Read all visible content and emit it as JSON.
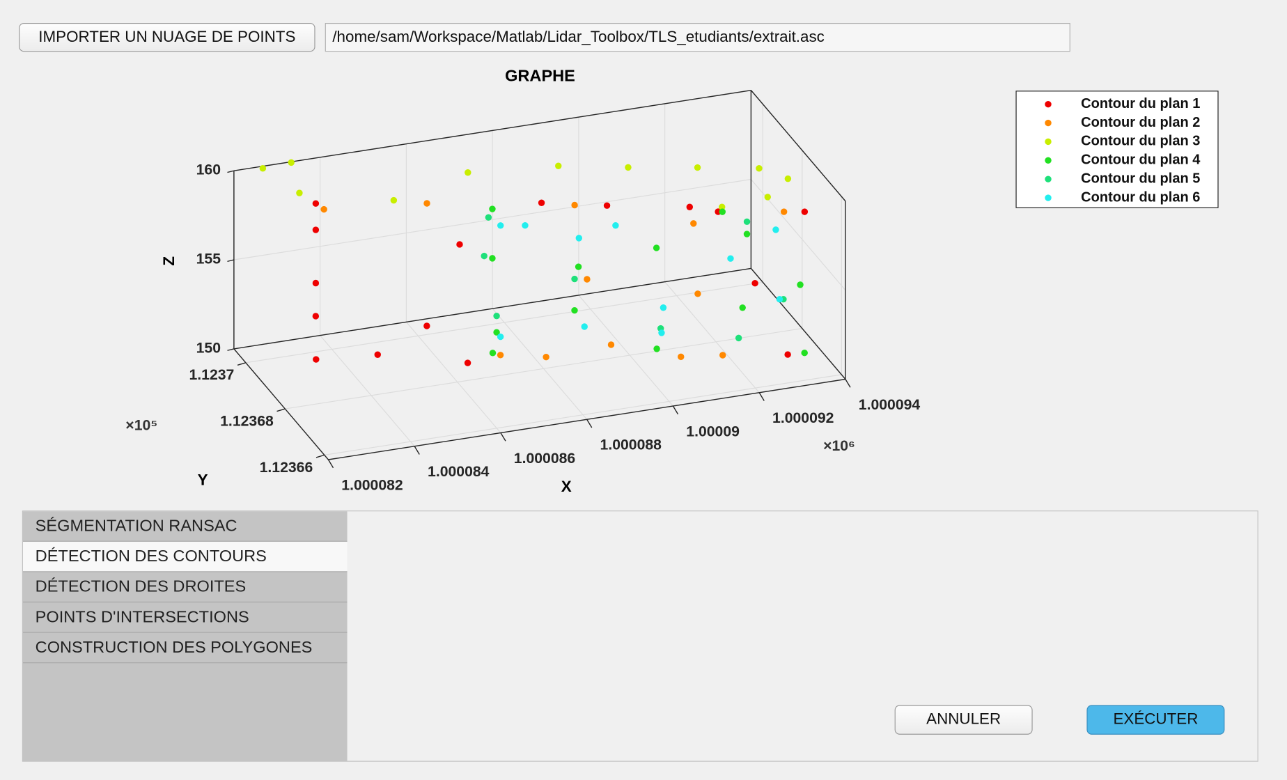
{
  "ui": {
    "import_button": "IMPORTER UN NUAGE DE POINTS",
    "file_path": "/home/sam/Workspace/Matlab/Lidar_Toolbox/TLS_etudiants/extrait.asc",
    "tabs": [
      "SÉGMENTATION RANSAC",
      "DÉTECTION DES CONTOURS",
      "DÉTECTION DES DROITES",
      "POINTS D'INTERSECTIONS",
      "CONSTRUCTION DES POLYGONES"
    ],
    "selected_tab": 1,
    "cancel_button": "ANNULER",
    "execute_button": "EXÉCUTER"
  },
  "chart_data": {
    "type": "scatter3d",
    "title": "GRAPHE",
    "xlabel": "X",
    "ylabel": "Y",
    "zlabel": "Z",
    "x_exponent_label": "×10⁶",
    "y_exponent_label": "×10⁵",
    "grid": true,
    "xlim": [
      1000082,
      1000094
    ],
    "ylim": [
      112365.8,
      112370.6
    ],
    "zlim": [
      150,
      160
    ],
    "xticks": [
      {
        "value": 1000082,
        "label": "1.000082"
      },
      {
        "value": 1000084,
        "label": "1.000084"
      },
      {
        "value": 1000086,
        "label": "1.000086"
      },
      {
        "value": 1000088,
        "label": "1.000088"
      },
      {
        "value": 1000090,
        "label": "1.00009"
      },
      {
        "value": 1000092,
        "label": "1.000092"
      },
      {
        "value": 1000094,
        "label": "1.000094"
      }
    ],
    "yticks": [
      {
        "value": 112366,
        "label": "1.12366"
      },
      {
        "value": 112368,
        "label": "1.12368"
      },
      {
        "value": 112370,
        "label": "1.1237"
      }
    ],
    "zticks": [
      150,
      155,
      160
    ],
    "series": [
      {
        "name": "Contour du plan 1",
        "color": "#ee0000",
        "x": [
          1000083.68,
          1000083.68,
          1000083.68,
          1000083.46,
          1000082.92,
          1000084.24,
          1000086.33,
          1000085.6,
          1000088.7,
          1000091.7,
          1000093.82,
          1000093.1,
          1000092.34,
          1000086.8,
          1000092.25,
          1000090.0
        ],
        "y": [
          112370.12,
          112370.12,
          112370.12,
          112369.64,
          112368.44,
          112368.2,
          112368.2,
          112368.68,
          112369.64,
          112368.68,
          112367.48,
          112366.76,
          112366.76,
          112369.64,
          112368.44,
          112369.16
        ],
        "z": [
          158.15,
          156.67,
          153.68,
          152.53,
          151.86,
          151.94,
          150.69,
          152.42,
          156.92,
          156.8,
          157.29,
          150.48,
          154.77,
          155.3,
          156.64,
          156.9
        ]
      },
      {
        "name": "Contour du plan 2",
        "color": "#ff8800",
        "x": [
          1000083.87,
          1000086.15,
          1000089.14,
          1000091.46,
          1000088.88,
          1000091.34,
          1000086.98,
          1000087.93,
          1000089.22,
          1000090.84,
          1000091.7,
          1000093.45
        ],
        "y": [
          112370.12,
          112369.88,
          112368.92,
          112367.96,
          112367.72,
          112367.48,
          112367.96,
          112367.72,
          112367.24,
          112367.24,
          112367.0,
          112367.72
        ],
        "z": [
          157.75,
          157.54,
          157.56,
          156.9,
          155.05,
          153.62,
          151.2,
          151.04,
          151.87,
          150.58,
          150.66,
          157.12
        ]
      },
      {
        "name": "Contour du plan 3",
        "color": "#c8ee00",
        "x": [
          1000082.67,
          1000083.33,
          1000083.41,
          1000085.38,
          1000087.21,
          1000089.31,
          1000090.82,
          1000092.32,
          1000093.53,
          1000093.98,
          1000093.51,
          1000092.45
        ],
        "y": [
          112370.6,
          112370.6,
          112370.36,
          112369.88,
          112370.12,
          112370.12,
          112369.88,
          112369.64,
          112369.16,
          112368.68,
          112368.68,
          112368.68
        ],
        "z": [
          159.88,
          159.96,
          158.53,
          158.0,
          158.56,
          158.14,
          157.8,
          157.54,
          157.66,
          157.53,
          156.68,
          156.52
        ]
      },
      {
        "name": "Contour du plan 4",
        "color": "#22e022",
        "x": [
          1000087.34,
          1000087.34,
          1000087.22,
          1000087.02,
          1000088.9,
          1000088.7,
          1000090.71,
          1000090.28,
          1000092.24,
          1000092.7,
          1000092.27,
          1000093.28,
          1000093.27
        ],
        "y": [
          112369.16,
          112369.16,
          112368.68,
          112368.44,
          112368.2,
          112367.96,
          112368.2,
          112367.24,
          112368.2,
          112367.96,
          112367.24,
          112366.52,
          112366.28
        ],
        "z": [
          157.71,
          154.94,
          151.45,
          150.68,
          155.12,
          153.06,
          155.5,
          151.24,
          156.95,
          155.84,
          152.8,
          154.64,
          151.13
        ]
      },
      {
        "name": "Contour du plan 5",
        "color": "#1ee07a",
        "x": [
          1000087.25,
          1000087.15,
          1000087.22,
          1000088.81,
          1000090.48,
          1000092.18,
          1000093.0,
          1000092.81
        ],
        "y": [
          112369.16,
          112369.16,
          112368.68,
          112368.2,
          112367.48,
          112367.24,
          112366.76,
          112368.2
        ],
        "z": [
          157.27,
          155.14,
          152.37,
          154.47,
          152.0,
          151.13,
          153.62,
          156.18
        ]
      },
      {
        "name": "Contour du plan 6",
        "color": "#22eeee",
        "x": [
          1000087.53,
          1000088.1,
          1000089.24,
          1000090.09,
          1000087.2,
          1000088.93,
          1000090.65,
          1000090.61,
          1000092.32,
          1000093.37,
          1000093.13
        ],
        "y": [
          112369.16,
          112369.16,
          112368.92,
          112368.92,
          112368.44,
          112367.96,
          112367.72,
          112367.72,
          112367.96,
          112367.96,
          112367.24
        ],
        "z": [
          156.71,
          156.5,
          155.67,
          156.06,
          151.52,
          152.06,
          152.79,
          151.39,
          154.61,
          155.83,
          152.95
        ]
      }
    ]
  }
}
